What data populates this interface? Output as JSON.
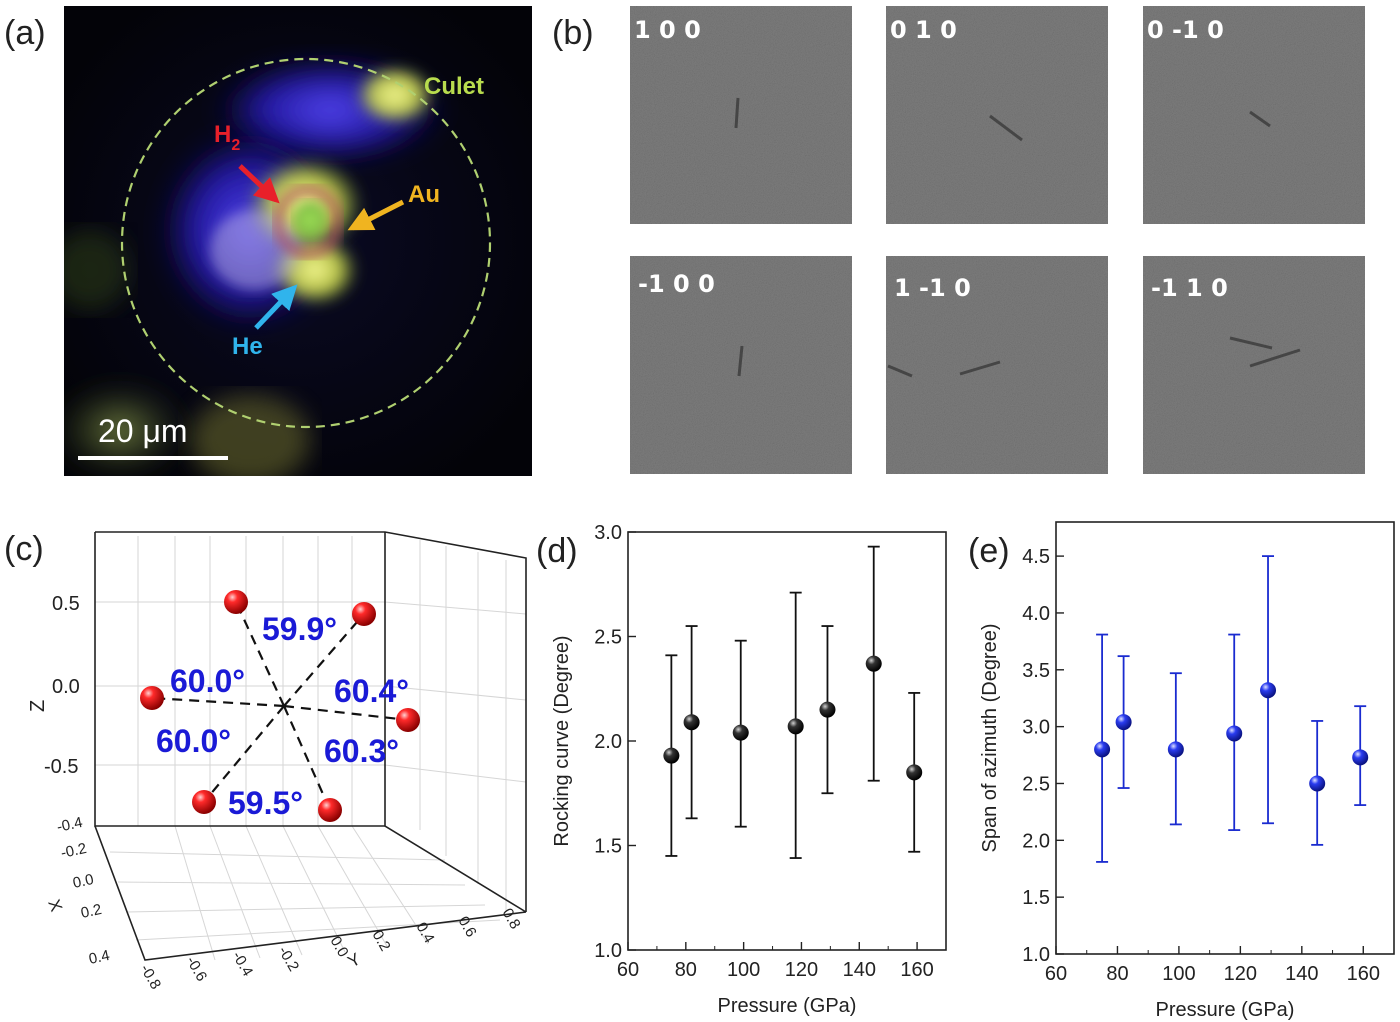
{
  "panels": {
    "a": {
      "label": "(a)",
      "annotations": [
        {
          "key": "culet",
          "text": "Culet",
          "color": "#b8dc4e"
        },
        {
          "key": "h2",
          "text": "H",
          "sub": "2",
          "color": "#e8202a"
        },
        {
          "key": "au",
          "text": "Au",
          "color": "#f0b420"
        },
        {
          "key": "he",
          "text": "He",
          "color": "#30b4ec"
        }
      ],
      "scalebar": "20 μm"
    },
    "b": {
      "label": "(b)",
      "tiles": [
        "1 0 0",
        "0 1 0",
        "0 -1 0",
        "-1 0 0",
        "1 -1 0",
        "-1 1 0"
      ]
    },
    "c": {
      "label": "(c)",
      "z_axis": {
        "label": "Z",
        "ticks": [
          "0.5",
          "0.0",
          "-0.5"
        ]
      },
      "x_axis": {
        "label": "X",
        "ticks": [
          "-0.4",
          "-0.2",
          "0.0",
          "0.2",
          "0.4"
        ]
      },
      "y_axis": {
        "label": "Y",
        "ticks": [
          "-0.8",
          "-0.6",
          "-0.4",
          "-0.2",
          "0.0",
          "0.2",
          "0.4",
          "0.6",
          "0.8"
        ]
      },
      "angles": [
        "59.9°",
        "60.0°",
        "60.4°",
        "60.0°",
        "60.3°",
        "59.5°"
      ]
    },
    "d": {
      "label": "(d)"
    },
    "e": {
      "label": "(e)"
    }
  },
  "chart_data": [
    {
      "type": "scatter",
      "panel": "d",
      "xlabel": "Pressure (GPa)",
      "ylabel": "Rocking curve (Degree)",
      "xlim": [
        60,
        170
      ],
      "ylim": [
        1.0,
        3.0
      ],
      "xticks": [
        60,
        80,
        100,
        120,
        140,
        160
      ],
      "yticks": [
        1.0,
        1.5,
        2.0,
        2.5,
        3.0
      ],
      "color": "#111111",
      "x": [
        75,
        82,
        99,
        118,
        129,
        145,
        159
      ],
      "y": [
        1.93,
        2.09,
        2.04,
        2.07,
        2.15,
        2.37,
        1.85
      ],
      "err_low": [
        1.45,
        1.63,
        1.59,
        1.44,
        1.75,
        1.81,
        1.47
      ],
      "err_high": [
        2.41,
        2.55,
        2.48,
        2.71,
        2.55,
        2.93,
        2.23
      ]
    },
    {
      "type": "scatter",
      "panel": "e",
      "xlabel": "Pressure (GPa)",
      "ylabel": "Span of azimuth (Degree)",
      "xlim": [
        60,
        170
      ],
      "ylim": [
        1.0,
        4.8
      ],
      "xticks": [
        60,
        80,
        100,
        120,
        140,
        160
      ],
      "yticks": [
        1.0,
        1.5,
        2.0,
        2.5,
        3.0,
        3.5,
        4.0,
        4.5
      ],
      "color": "#1a2bd0",
      "x": [
        75,
        82,
        99,
        118,
        129,
        145,
        159
      ],
      "y": [
        2.8,
        3.04,
        2.8,
        2.94,
        3.32,
        2.5,
        2.73
      ],
      "err_low": [
        1.81,
        2.46,
        2.14,
        2.09,
        2.15,
        1.96,
        2.31
      ],
      "err_high": [
        3.81,
        3.62,
        3.47,
        3.81,
        4.5,
        3.05,
        3.18
      ]
    }
  ]
}
